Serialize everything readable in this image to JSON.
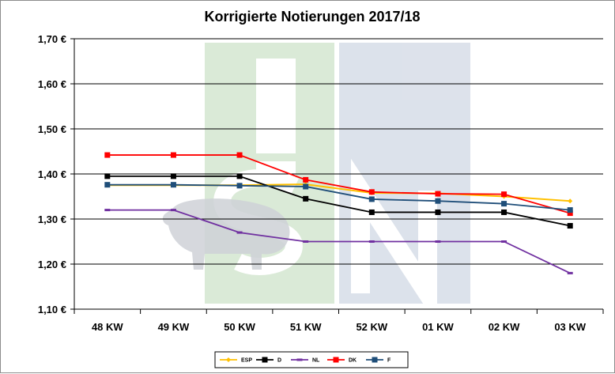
{
  "chart_data": {
    "type": "line",
    "title": "Korrigierte Notierungen 2017/18",
    "xlabel": "",
    "ylabel": "",
    "categories": [
      "48 KW",
      "49 KW",
      "50 KW",
      "51 KW",
      "52 KW",
      "01 KW",
      "02 KW",
      "03 KW"
    ],
    "ylim": [
      1.1,
      1.7
    ],
    "yticks": [
      1.1,
      1.2,
      1.3,
      1.4,
      1.5,
      1.6,
      1.7
    ],
    "ytick_labels": [
      "1,10 €",
      "1,20 €",
      "1,30 €",
      "1,40 €",
      "1,50 €",
      "1,60 €",
      "1,70 €"
    ],
    "grid": true,
    "legend_position": "bottom",
    "series": [
      {
        "name": "ESP",
        "color": "#ffc000",
        "marker": "diamond",
        "values": [
          1.375,
          1.375,
          1.375,
          1.377,
          1.358,
          1.357,
          1.35,
          1.34
        ]
      },
      {
        "name": "D",
        "color": "#000000",
        "marker": "square",
        "values": [
          1.395,
          1.395,
          1.395,
          1.345,
          1.315,
          1.315,
          1.315,
          1.285
        ]
      },
      {
        "name": "NL",
        "color": "#7030a0",
        "marker": "dash",
        "values": [
          1.32,
          1.32,
          1.27,
          1.25,
          1.25,
          1.25,
          1.25,
          1.18
        ]
      },
      {
        "name": "DK",
        "color": "#ff0000",
        "marker": "square",
        "values": [
          1.442,
          1.442,
          1.442,
          1.387,
          1.36,
          1.356,
          1.355,
          1.313
        ]
      },
      {
        "name": "F",
        "color": "#1f4e79",
        "marker": "square",
        "values": [
          1.376,
          1.376,
          1.374,
          1.372,
          1.344,
          1.34,
          1.334,
          1.32
        ]
      }
    ]
  }
}
